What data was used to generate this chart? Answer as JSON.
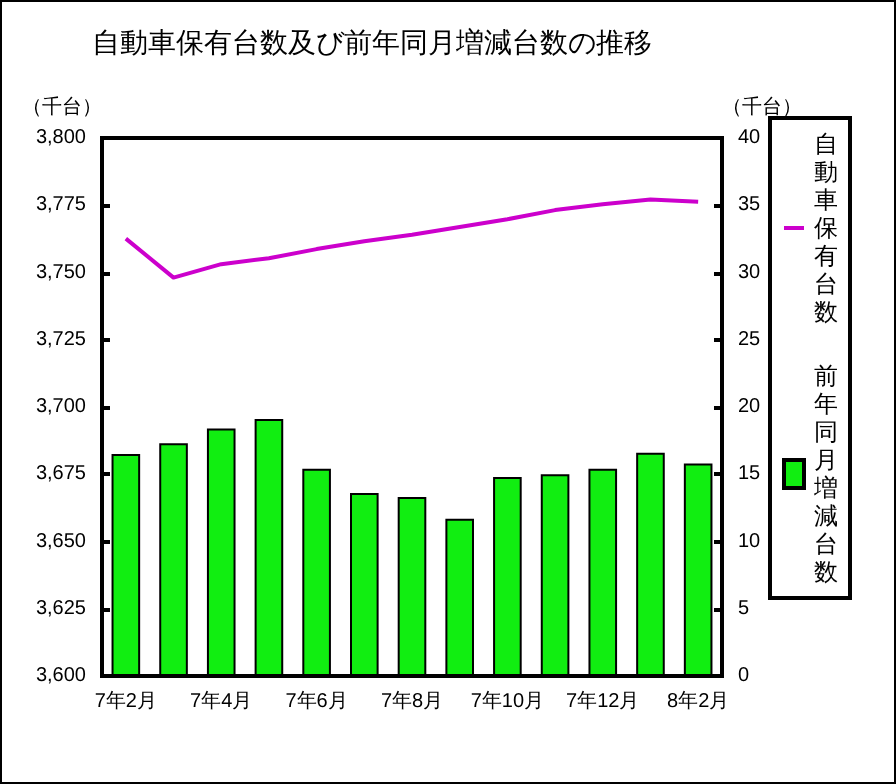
{
  "chart_data": {
    "type": "bar",
    "title": "自動車保有台数及び前年同月増減台数の推移",
    "ylabel": "（千台）",
    "y2label": "（千台）",
    "categories": [
      "7年2月",
      null,
      "7年4月",
      null,
      "7年6月",
      null,
      "7年8月",
      null,
      "7年10月",
      null,
      "7年12月",
      null,
      "8年2月"
    ],
    "series": [
      {
        "name": "自動車保有台数",
        "type": "line",
        "axis": "y",
        "color": "#cc00cc",
        "values": [
          3762.6,
          3748.1,
          3753.1,
          3755.3,
          3758.7,
          3761.6,
          3764.0,
          3766.9,
          3769.8,
          3773.2,
          3775.4,
          3777.1,
          3776.3
        ]
      },
      {
        "name": "前年同月増減台数",
        "axis": "y2",
        "color": "#11ee11",
        "values": [
          16.5,
          17.3,
          18.4,
          19.1,
          15.4,
          13.6,
          13.3,
          11.7,
          14.8,
          15.0,
          15.4,
          16.6,
          15.8
        ]
      }
    ],
    "ylim": [
      3600,
      3800
    ],
    "yticks": [
      {
        "value": 3600,
        "label": "3,600"
      },
      {
        "value": 3625,
        "label": "3,625"
      },
      {
        "value": 3650,
        "label": "3,650"
      },
      {
        "value": 3675,
        "label": "3,675"
      },
      {
        "value": 3700,
        "label": "3,700"
      },
      {
        "value": 3725,
        "label": "3,725"
      },
      {
        "value": 3750,
        "label": "3,750"
      },
      {
        "value": 3775,
        "label": "3,775"
      },
      {
        "value": 3800,
        "label": "3,800"
      }
    ],
    "y2lim": [
      0,
      40
    ],
    "y2ticks": [
      0,
      5,
      10,
      15,
      20,
      25,
      30,
      35,
      40
    ],
    "legend": "right",
    "marker": "none"
  }
}
